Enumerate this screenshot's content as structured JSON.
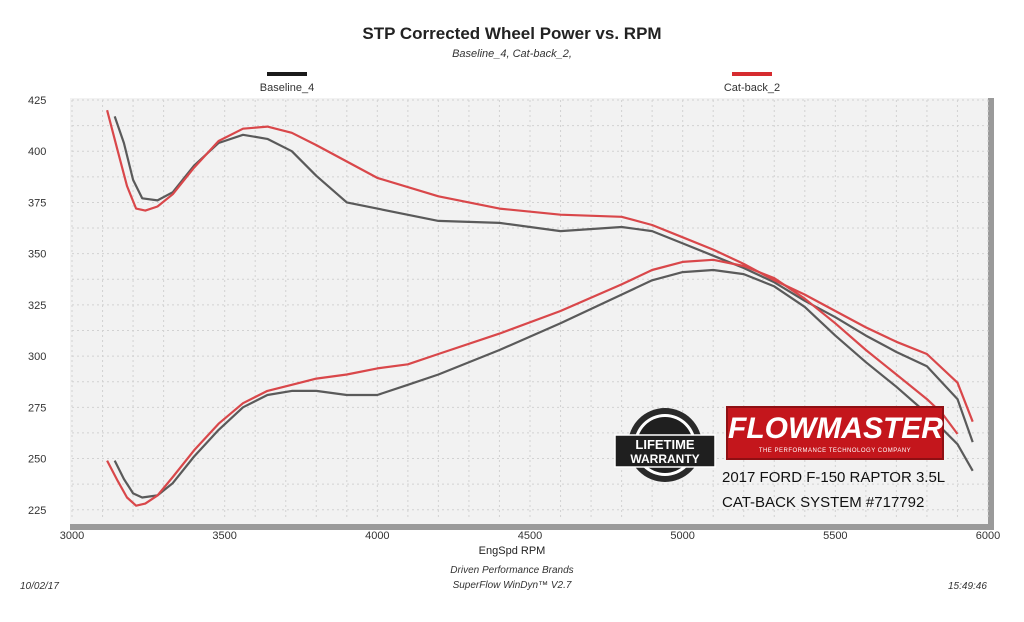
{
  "chart_data": {
    "type": "line",
    "title": "STP Corrected Wheel Power vs. RPM",
    "subtitle": "Baseline_4, Cat-back_2,",
    "xlabel": "EngSpd  RPM",
    "ylabel": "",
    "xlim": [
      3000,
      6000
    ],
    "ylim": [
      220,
      425
    ],
    "xticks": [
      3000,
      3500,
      4000,
      4500,
      5000,
      5500,
      6000
    ],
    "yticks": [
      225,
      250,
      275,
      300,
      325,
      350,
      375,
      400,
      425
    ],
    "grid": true,
    "legend_placement": "top",
    "series": [
      {
        "name": "Baseline_4",
        "metric": "torque",
        "color": "#5a5a5a",
        "x": [
          3140,
          3170,
          3200,
          3230,
          3280,
          3330,
          3400,
          3480,
          3560,
          3640,
          3720,
          3800,
          3900,
          4000,
          4200,
          4400,
          4600,
          4800,
          4900,
          5000,
          5100,
          5200,
          5300,
          5400,
          5500,
          5600,
          5700,
          5800,
          5900,
          5950
        ],
        "y": [
          417,
          404,
          386,
          377,
          376,
          380,
          393,
          404,
          408,
          406,
          400,
          388,
          375,
          372,
          366,
          365,
          361,
          363,
          361,
          355,
          349,
          343,
          336,
          327,
          319,
          310,
          302,
          295,
          279,
          258
        ]
      },
      {
        "name": "Cat-back_2",
        "metric": "torque",
        "color": "#d9474a",
        "x": [
          3115,
          3150,
          3180,
          3210,
          3240,
          3280,
          3330,
          3400,
          3480,
          3560,
          3640,
          3720,
          3800,
          3900,
          4000,
          4200,
          4400,
          4600,
          4800,
          4900,
          5000,
          5100,
          5200,
          5300,
          5400,
          5500,
          5600,
          5700,
          5800,
          5900,
          5950
        ],
        "y": [
          420,
          400,
          383,
          372,
          371,
          373,
          379,
          392,
          405,
          411,
          412,
          409,
          403,
          395,
          387,
          378,
          372,
          369,
          368,
          364,
          358,
          352,
          345,
          337,
          330,
          322,
          314,
          307,
          301,
          287,
          268
        ]
      },
      {
        "name": "Baseline_4",
        "metric": "power",
        "color": "#5a5a5a",
        "x": [
          3140,
          3170,
          3200,
          3230,
          3280,
          3330,
          3400,
          3480,
          3560,
          3640,
          3720,
          3800,
          3900,
          4000,
          4100,
          4200,
          4400,
          4600,
          4800,
          4900,
          5000,
          5100,
          5200,
          5300,
          5400,
          5500,
          5600,
          5700,
          5800,
          5900,
          5950
        ],
        "y": [
          249,
          240,
          233,
          231,
          232,
          238,
          251,
          264,
          275,
          281,
          283,
          283,
          281,
          281,
          286,
          291,
          303,
          316,
          330,
          337,
          341,
          342,
          340,
          334,
          324,
          310,
          297,
          285,
          272,
          257,
          244
        ]
      },
      {
        "name": "Cat-back_2",
        "metric": "power",
        "color": "#d9474a",
        "x": [
          3115,
          3150,
          3180,
          3210,
          3240,
          3280,
          3330,
          3400,
          3480,
          3560,
          3640,
          3720,
          3800,
          3900,
          4000,
          4100,
          4200,
          4400,
          4600,
          4800,
          4900,
          5000,
          5100,
          5200,
          5300,
          5400,
          5500,
          5600,
          5700,
          5800,
          5850,
          5900
        ],
        "y": [
          249,
          239,
          231,
          227,
          228,
          232,
          241,
          254,
          267,
          277,
          283,
          286,
          289,
          291,
          294,
          296,
          301,
          311,
          322,
          335,
          342,
          346,
          347,
          344,
          338,
          328,
          316,
          303,
          291,
          279,
          272,
          262
        ]
      }
    ]
  },
  "legend": [
    {
      "label": "Baseline_4",
      "color": "#1a1a1a"
    },
    {
      "label": "Cat-back_2",
      "color": "#d62b2f"
    }
  ],
  "footer": {
    "company": "Driven Performance Brands",
    "software": "SuperFlow WinDyn™  V2.7",
    "date": "10/02/17",
    "time": "15:49:46"
  },
  "badge": {
    "top_text": "LIFETIME",
    "bottom_text": "WARRANTY"
  },
  "logo": {
    "name": "FLOWMASTER",
    "tagline": "THE PERFORMANCE TECHNOLOGY COMPANY"
  },
  "caption": {
    "line1": "2017 FORD F-150 RAPTOR 3.5L",
    "line2": "CAT-BACK SYSTEM #717792"
  }
}
